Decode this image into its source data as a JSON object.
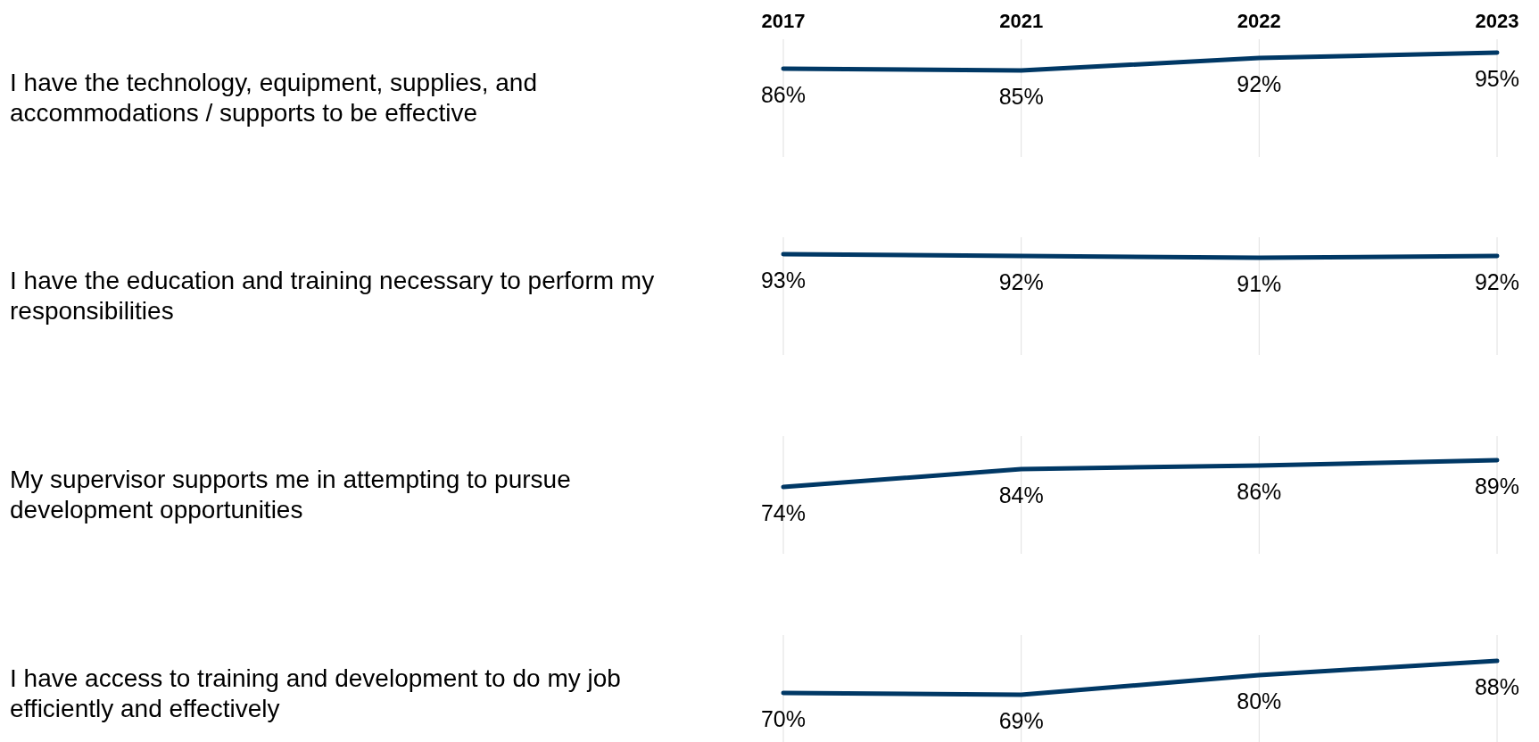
{
  "chart_data": [
    {
      "type": "line",
      "title": "I have the technology, equipment, supplies, and accommodations / supports to be effective",
      "categories": [
        "2017",
        "2021",
        "2022",
        "2023"
      ],
      "series": [
        {
          "color": "#003865",
          "values": [
            86,
            85,
            92,
            95
          ],
          "value_labels": [
            "86%",
            "85%",
            "92%",
            "95%"
          ]
        }
      ],
      "grid": "x",
      "tick_labels": "x"
    },
    {
      "type": "line",
      "title": "I have the education and training necessary to perform my responsibilities",
      "categories": [
        "2017",
        "2021",
        "2022",
        "2023"
      ],
      "series": [
        {
          "color": "#003865",
          "values": [
            93,
            92,
            91,
            92
          ],
          "value_labels": [
            "93%",
            "92%",
            "91%",
            "92%"
          ]
        }
      ],
      "grid": "x",
      "tick_labels": false
    },
    {
      "type": "line",
      "title": "My supervisor supports me in attempting to pursue development opportunities",
      "categories": [
        "2017",
        "2021",
        "2022",
        "2023"
      ],
      "series": [
        {
          "color": "#003865",
          "values": [
            74,
            84,
            86,
            89
          ],
          "value_labels": [
            "74%",
            "84%",
            "86%",
            "89%"
          ]
        }
      ],
      "grid": "x",
      "tick_labels": false
    },
    {
      "type": "line",
      "title": "I have access to training and development to do my job efficiently and effectively",
      "categories": [
        "2017",
        "2021",
        "2022",
        "2023"
      ],
      "series": [
        {
          "color": "#003865",
          "values": [
            70,
            69,
            80,
            88
          ],
          "value_labels": [
            "70%",
            "69%",
            "80%",
            "88%"
          ]
        }
      ],
      "grid": "x",
      "tick_labels": false
    }
  ]
}
